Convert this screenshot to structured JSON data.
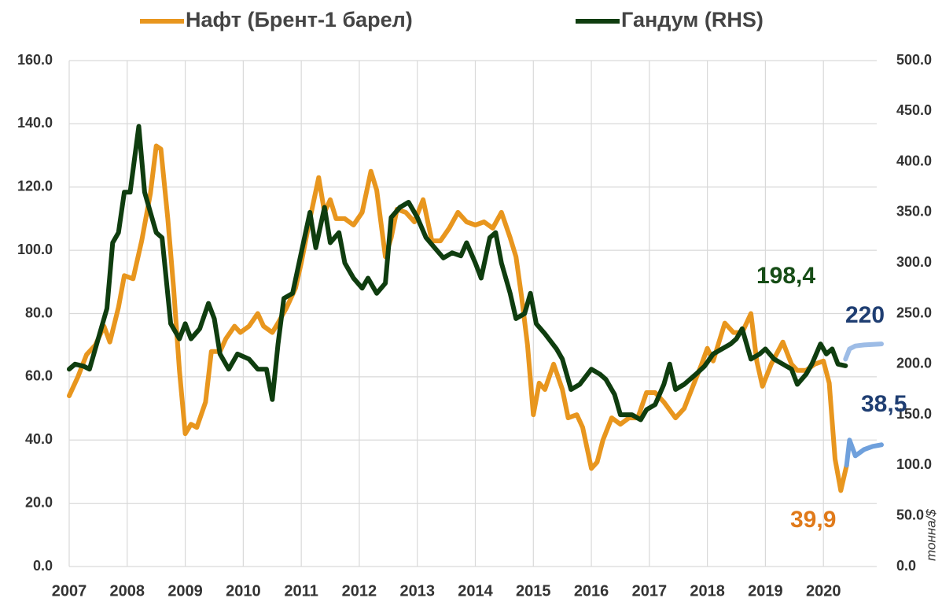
{
  "chart_data": {
    "type": "line",
    "x_is_numeric": true,
    "xlim": [
      2007,
      2021
    ],
    "xticks": [
      2007,
      2008,
      2009,
      2010,
      2011,
      2012,
      2013,
      2014,
      2015,
      2016,
      2017,
      2018,
      2019,
      2020
    ],
    "ylim": [
      0,
      160
    ],
    "yticks": [
      {
        "value": 0,
        "label": "0.0"
      },
      {
        "value": 20,
        "label": "20.0"
      },
      {
        "value": 40,
        "label": "40.0"
      },
      {
        "value": 60,
        "label": "60.0"
      },
      {
        "value": 80,
        "label": "80.0"
      },
      {
        "value": 100,
        "label": "100.0"
      },
      {
        "value": 120,
        "label": "120.0"
      },
      {
        "value": 140,
        "label": "140.0"
      },
      {
        "value": 160,
        "label": "160.0"
      }
    ],
    "y2lim": [
      0,
      500
    ],
    "y2ticks": [
      {
        "value": 0,
        "label": "0.0"
      },
      {
        "value": 50,
        "label": "50.0"
      },
      {
        "value": 100,
        "label": "100.0"
      },
      {
        "value": 150,
        "label": "150.0"
      },
      {
        "value": 200,
        "label": "200.0"
      },
      {
        "value": 250,
        "label": "250.0"
      },
      {
        "value": 300,
        "label": "300.0"
      },
      {
        "value": 350,
        "label": "350.0"
      },
      {
        "value": 400,
        "label": "400.0"
      },
      {
        "value": 450,
        "label": "450.0"
      },
      {
        "value": 500,
        "label": "500.0"
      }
    ],
    "y2label": "тонна/$",
    "grid": true,
    "legend": "top",
    "annotations": [
      "198,4",
      "220",
      "38,5",
      "39,9"
    ],
    "series": [
      {
        "name": "Нафт (Брент-1 барел)",
        "color": "#e8961e",
        "axis": "y",
        "x": [
          2007.0,
          2007.15,
          2007.3,
          2007.45,
          2007.6,
          2007.7,
          2007.85,
          2007.95,
          2008.1,
          2008.25,
          2008.4,
          2008.5,
          2008.58,
          2008.7,
          2008.8,
          2008.9,
          2009.0,
          2009.1,
          2009.2,
          2009.35,
          2009.45,
          2009.6,
          2009.7,
          2009.85,
          2009.95,
          2010.1,
          2010.25,
          2010.35,
          2010.5,
          2010.6,
          2010.75,
          2010.9,
          2011.0,
          2011.15,
          2011.3,
          2011.4,
          2011.5,
          2011.6,
          2011.75,
          2011.9,
          2012.05,
          2012.2,
          2012.3,
          2012.45,
          2012.55,
          2012.65,
          2012.8,
          2012.95,
          2013.1,
          2013.25,
          2013.4,
          2013.55,
          2013.7,
          2013.85,
          2014.0,
          2014.15,
          2014.3,
          2014.45,
          2014.6,
          2014.7,
          2014.8,
          2014.9,
          2015.0,
          2015.1,
          2015.2,
          2015.35,
          2015.5,
          2015.6,
          2015.75,
          2015.85,
          2016.0,
          2016.1,
          2016.2,
          2016.35,
          2016.5,
          2016.65,
          2016.8,
          2016.95,
          2017.1,
          2017.25,
          2017.45,
          2017.6,
          2017.75,
          2017.9,
          2018.0,
          2018.1,
          2018.3,
          2018.45,
          2018.6,
          2018.75,
          2018.85,
          2018.95,
          2019.1,
          2019.3,
          2019.45,
          2019.55,
          2019.7,
          2019.85,
          2020.0,
          2020.1,
          2020.2,
          2020.3,
          2020.4
        ],
        "values": [
          54,
          60,
          67,
          70,
          76,
          71,
          82,
          92,
          91,
          103,
          118,
          133,
          132,
          110,
          88,
          62,
          42,
          45,
          44,
          52,
          68,
          68,
          72,
          76,
          74,
          76,
          80,
          76,
          74,
          77,
          82,
          88,
          96,
          110,
          123,
          112,
          116,
          110,
          110,
          108,
          112,
          125,
          119,
          98,
          104,
          113,
          112,
          109,
          116,
          103,
          103,
          107,
          112,
          109,
          108,
          109,
          107,
          112,
          104,
          98,
          85,
          70,
          48,
          58,
          56,
          64,
          56,
          47,
          48,
          44,
          31,
          33,
          40,
          47,
          45,
          47,
          47,
          55,
          55,
          52,
          47,
          50,
          57,
          64,
          69,
          65,
          77,
          74,
          74,
          80,
          65,
          57,
          64,
          71,
          64,
          62,
          62,
          64,
          65,
          58,
          34,
          24,
          32
        ]
      },
      {
        "name": "Гандум (RHS)",
        "color": "#0f3d0f",
        "axis": "y2",
        "x": [
          2007.0,
          2007.1,
          2007.25,
          2007.35,
          2007.5,
          2007.65,
          2007.75,
          2007.85,
          2007.95,
          2008.05,
          2008.2,
          2008.3,
          2008.4,
          2008.5,
          2008.6,
          2008.75,
          2008.9,
          2009.0,
          2009.1,
          2009.25,
          2009.4,
          2009.5,
          2009.6,
          2009.75,
          2009.9,
          2010.1,
          2010.25,
          2010.4,
          2010.5,
          2010.6,
          2010.7,
          2010.85,
          2011.0,
          2011.15,
          2011.25,
          2011.4,
          2011.5,
          2011.65,
          2011.75,
          2011.9,
          2012.05,
          2012.15,
          2012.3,
          2012.45,
          2012.55,
          2012.7,
          2012.85,
          2013.0,
          2013.15,
          2013.3,
          2013.45,
          2013.6,
          2013.75,
          2013.85,
          2014.0,
          2014.1,
          2014.25,
          2014.35,
          2014.45,
          2014.6,
          2014.7,
          2014.85,
          2014.95,
          2015.05,
          2015.2,
          2015.4,
          2015.5,
          2015.65,
          2015.8,
          2016.0,
          2016.15,
          2016.25,
          2016.4,
          2016.5,
          2016.7,
          2016.85,
          2016.95,
          2017.1,
          2017.25,
          2017.35,
          2017.45,
          2017.6,
          2017.8,
          2017.95,
          2018.1,
          2018.25,
          2018.4,
          2018.5,
          2018.6,
          2018.75,
          2018.9,
          2019.0,
          2019.15,
          2019.3,
          2019.45,
          2019.55,
          2019.7,
          2019.8,
          2019.95,
          2020.05,
          2020.15,
          2020.25,
          2020.38
        ],
        "values": [
          195,
          200,
          198,
          195,
          225,
          255,
          320,
          330,
          370,
          370,
          435,
          370,
          350,
          330,
          325,
          240,
          225,
          240,
          225,
          235,
          260,
          245,
          210,
          195,
          210,
          205,
          195,
          195,
          165,
          220,
          265,
          270,
          310,
          350,
          315,
          355,
          320,
          330,
          300,
          285,
          275,
          285,
          270,
          280,
          345,
          355,
          360,
          345,
          325,
          315,
          305,
          310,
          307,
          320,
          300,
          285,
          325,
          330,
          300,
          270,
          245,
          250,
          270,
          240,
          230,
          215,
          205,
          175,
          180,
          195,
          190,
          185,
          170,
          150,
          150,
          145,
          155,
          160,
          180,
          200,
          175,
          180,
          190,
          198,
          210,
          215,
          220,
          225,
          235,
          205,
          210,
          215,
          205,
          200,
          195,
          180,
          190,
          200,
          220,
          210,
          215,
          200,
          198.4
        ]
      },
      {
        "color": "#6fa0dc",
        "axis": "y",
        "x": [
          2020.4,
          2020.45,
          2020.55,
          2020.7,
          2020.85,
          2021.0
        ],
        "values": [
          32,
          40,
          35,
          37,
          38,
          38.5
        ]
      },
      {
        "color": "#9dbce6",
        "axis": "y2",
        "x": [
          2020.38,
          2020.45,
          2020.55,
          2020.7,
          2021.0
        ],
        "values": [
          205,
          215,
          218,
          219,
          220
        ]
      }
    ]
  }
}
